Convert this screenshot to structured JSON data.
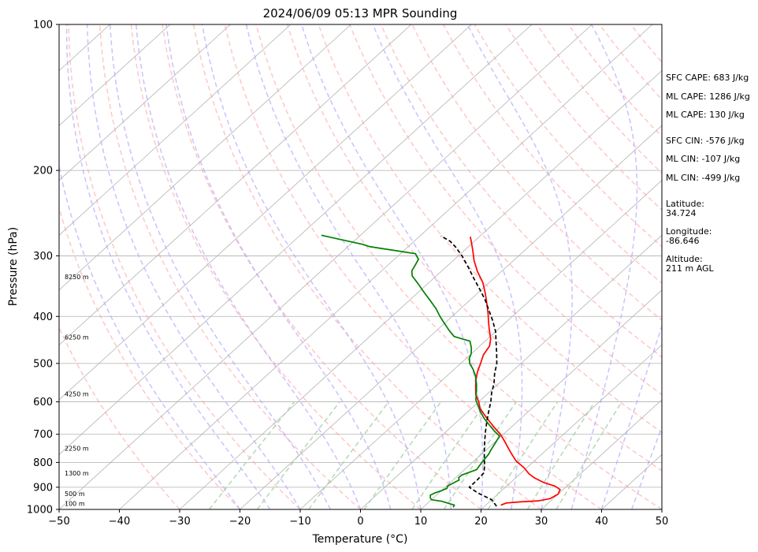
{
  "chart_data": {
    "type": "line",
    "subtype": "skew-t log-p sounding",
    "title": "2024/06/09 05:13 MPR Sounding",
    "xlabel": "Temperature (°C)",
    "ylabel": "Pressure (hPa)",
    "xlim": [
      -50,
      50
    ],
    "ylim": [
      1000,
      100
    ],
    "y_scale": "log",
    "grid": true,
    "x_ticks": [
      "−50",
      "−40",
      "−30",
      "−20",
      "−10",
      "0",
      "10",
      "20",
      "30",
      "40",
      "50"
    ],
    "y_ticks": [
      "1000",
      "900",
      "800",
      "700",
      "600",
      "500",
      "400",
      "300",
      "200",
      "100"
    ],
    "height_labels": [
      "100 m",
      "500 m",
      "1300 m",
      "2250 m",
      "4250 m",
      "6250 m",
      "8250 m"
    ],
    "series": [
      {
        "role": "temperature",
        "color": "#ff0000",
        "points": [
          [
            22.5,
            980
          ],
          [
            23,
            970
          ],
          [
            25,
            965
          ],
          [
            28,
            960
          ],
          [
            29.5,
            950
          ],
          [
            30,
            930
          ],
          [
            29.5,
            910
          ],
          [
            28,
            895
          ],
          [
            25.5,
            880
          ],
          [
            23,
            860
          ],
          [
            21.5,
            845
          ],
          [
            19.5,
            820
          ],
          [
            17,
            795
          ],
          [
            14.3,
            760
          ],
          [
            11.2,
            720
          ],
          [
            9.5,
            700
          ],
          [
            7.5,
            680
          ],
          [
            5.5,
            660
          ],
          [
            3.5,
            640
          ],
          [
            1.5,
            620
          ],
          [
            0,
            600
          ],
          [
            -1.8,
            580
          ],
          [
            -3.5,
            555
          ],
          [
            -4.5,
            540
          ],
          [
            -5.7,
            520
          ],
          [
            -6.7,
            500
          ],
          [
            -7.8,
            480
          ],
          [
            -8.4,
            460
          ],
          [
            -9.5,
            445
          ],
          [
            -11.5,
            425
          ],
          [
            -13,
            410
          ],
          [
            -14.5,
            395
          ],
          [
            -16.5,
            377
          ],
          [
            -18.5,
            360
          ],
          [
            -21,
            341
          ],
          [
            -24,
            323
          ],
          [
            -26.5,
            307
          ],
          [
            -28.5,
            293
          ],
          [
            -30.2,
            282
          ],
          [
            -31.5,
            274
          ]
        ]
      },
      {
        "role": "dewpoint",
        "color": "#008000",
        "points": [
          [
            15,
            990
          ],
          [
            14.8,
            980
          ],
          [
            12,
            962
          ],
          [
            10,
            955
          ],
          [
            9.5,
            947
          ],
          [
            9,
            935
          ],
          [
            9.3,
            925
          ],
          [
            10,
            915
          ],
          [
            10.5,
            905
          ],
          [
            10.2,
            895
          ],
          [
            10.5,
            885
          ],
          [
            11,
            870
          ],
          [
            10.5,
            860
          ],
          [
            10.5,
            850
          ],
          [
            11.3,
            838
          ],
          [
            12,
            828
          ],
          [
            11.8,
            815
          ],
          [
            11.5,
            795
          ],
          [
            11.2,
            770
          ],
          [
            10.7,
            750
          ],
          [
            10.2,
            727
          ],
          [
            9.7,
            706
          ],
          [
            8,
            690
          ],
          [
            6,
            670
          ],
          [
            4,
            650
          ],
          [
            2,
            628
          ],
          [
            0.5,
            610
          ],
          [
            -0.8,
            595
          ],
          [
            -1.6,
            582
          ],
          [
            -2.5,
            568
          ],
          [
            -3.5,
            553
          ],
          [
            -4.5,
            540
          ],
          [
            -5.5,
            528
          ],
          [
            -7,
            513
          ],
          [
            -8.5,
            500
          ],
          [
            -9.5,
            488
          ],
          [
            -10,
            478
          ],
          [
            -11,
            465
          ],
          [
            -12.5,
            450
          ],
          [
            -16,
            440
          ],
          [
            -18,
            427
          ],
          [
            -20.5,
            410
          ],
          [
            -22,
            400
          ],
          [
            -24,
            386
          ],
          [
            -26.5,
            371
          ],
          [
            -29,
            357
          ],
          [
            -31.5,
            343
          ],
          [
            -34,
            330
          ],
          [
            -35,
            322
          ],
          [
            -35.5,
            313
          ],
          [
            -36,
            305
          ],
          [
            -37.5,
            297
          ],
          [
            -43.8,
            290
          ],
          [
            -46.5,
            287
          ],
          [
            -48,
            284
          ],
          [
            -53,
            277
          ],
          [
            -56.5,
            272
          ]
        ]
      },
      {
        "role": "parcel",
        "color": "#000000",
        "dashed": true,
        "points": [
          [
            22,
            985
          ],
          [
            20,
            955
          ],
          [
            16.5,
            925
          ],
          [
            14,
            900
          ],
          [
            14,
            870
          ],
          [
            13.8,
            840
          ],
          [
            12.5,
            810
          ],
          [
            11,
            780
          ],
          [
            9.5,
            750
          ],
          [
            8,
            720
          ],
          [
            6.5,
            690
          ],
          [
            5,
            660
          ],
          [
            3.5,
            630
          ],
          [
            2,
            600
          ],
          [
            0.5,
            575
          ],
          [
            -0.8,
            550
          ],
          [
            -2.5,
            525
          ],
          [
            -4,
            500
          ],
          [
            -6,
            475
          ],
          [
            -8,
            452
          ],
          [
            -10,
            430
          ],
          [
            -12.5,
            408
          ],
          [
            -14.8,
            390
          ],
          [
            -17.5,
            370
          ],
          [
            -20.3,
            352
          ],
          [
            -23.3,
            334
          ],
          [
            -26.4,
            316
          ],
          [
            -29.4,
            300
          ],
          [
            -32,
            288
          ],
          [
            -34,
            280
          ],
          [
            -36.5,
            273
          ]
        ]
      }
    ],
    "background_lines": [
      {
        "role": "isotherms",
        "color": "#b3b3b3"
      },
      {
        "role": "dry adiabats",
        "color": "#ff9999",
        "dashed": true
      },
      {
        "role": "moist adiabats",
        "color": "#b3a6ff",
        "dashed": true
      },
      {
        "role": "mixing ratio lines",
        "color": "#a8d5a8",
        "dashed": true
      }
    ]
  },
  "stats": {
    "sfc_cape": "SFC CAPE: 683 J/kg",
    "ml_cape_1": "ML CAPE: 1286 J/kg",
    "ml_cape_2": "ML CAPE: 130 J/kg",
    "sfc_cin": "SFC CIN: -576 J/kg",
    "ml_cin_1": "ML CIN: -107 J/kg",
    "ml_cin_2": "ML CIN: -499 J/kg",
    "lat_label": "Latitude:",
    "lat_value": "34.724",
    "lon_label": "Longitude:",
    "lon_value": "-86.646",
    "alt_label": "Altitude:",
    "alt_value": "211 m AGL"
  }
}
